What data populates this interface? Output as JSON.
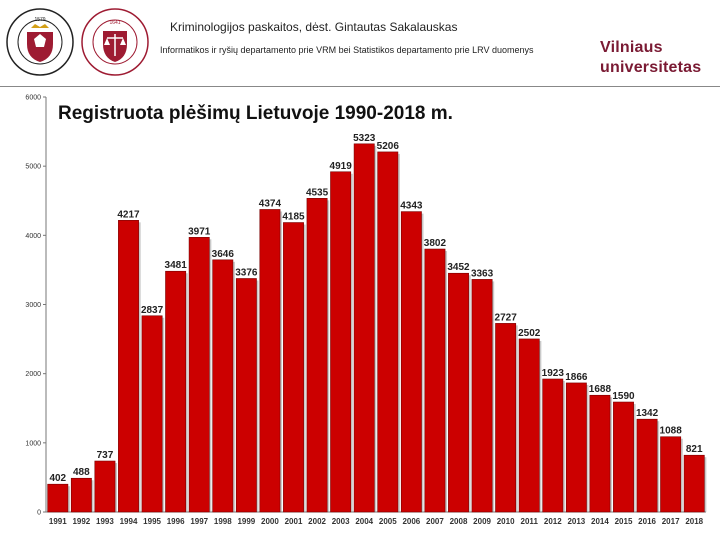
{
  "header": {
    "title": "Kriminologijos paskaitos, dėst. Gintautas Sakalauskas",
    "subtitle": "Informatikos ir ryšių departamento prie VRM bei Statistikos departamento prie LRV duomenys",
    "brand_line1": "Vilniaus",
    "brand_line2": "universitetas"
  },
  "colors": {
    "bar": "#cc0000",
    "bar_edge": "#7a0000",
    "brand": "#7a1a33",
    "logo_red": "#9e1b32"
  },
  "logos": {
    "left_text": "VILNIAUS UNIVERSITETAS",
    "left_year": "1579",
    "right_text": "TEISĖS FAKULTETAS",
    "right_year": "1641"
  },
  "chart_data": {
    "type": "bar",
    "title": "Registruota plėšimų Lietuvoje 1990-2018  m.",
    "xlabel": "",
    "ylabel": "",
    "ylim": [
      0,
      6000
    ],
    "yticks": [
      0,
      1000,
      2000,
      3000,
      4000,
      5000,
      6000
    ],
    "grid": false,
    "categories": [
      "1991",
      "1992",
      "1993",
      "1994",
      "1995",
      "1996",
      "1997",
      "1998",
      "1999",
      "2000",
      "2001",
      "2002",
      "2003",
      "2004",
      "2005",
      "2006",
      "2007",
      "2008",
      "2009",
      "2010",
      "2011",
      "2012",
      "2013",
      "2014",
      "2015",
      "2016",
      "2017",
      "2018"
    ],
    "values": [
      402,
      488,
      737,
      4217,
      2837,
      3481,
      3971,
      3646,
      3376,
      4374,
      4185,
      4535,
      4919,
      5323,
      5206,
      4343,
      3802,
      3452,
      3363,
      2727,
      2502,
      1923,
      1866,
      1688,
      1590,
      1342,
      1088,
      821
    ]
  }
}
